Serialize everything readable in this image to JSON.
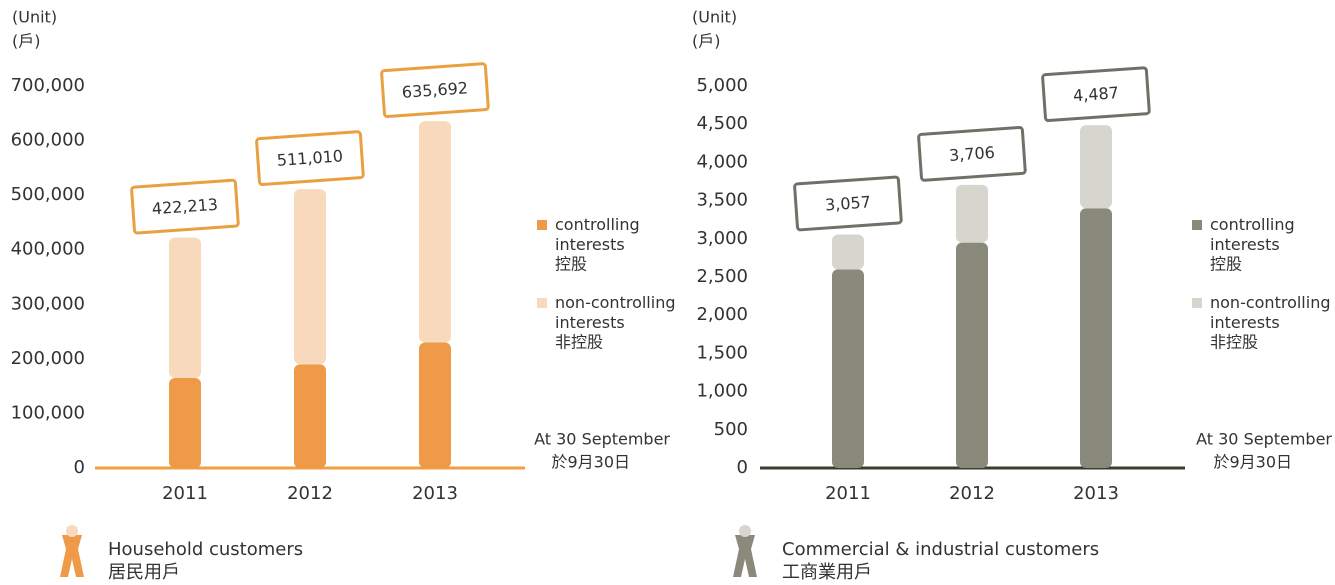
{
  "chart_data": [
    {
      "type": "bar",
      "stacked": true,
      "unit_label": "(Unit)",
      "unit_label_zh": "(戶)",
      "categories": [
        "2011",
        "2012",
        "2013"
      ],
      "series": [
        {
          "name": "controlling interests",
          "name_zh": "控股",
          "color": "#ef9a48",
          "values": [
            165000,
            190000,
            230000
          ]
        },
        {
          "name": "non-controlling interests",
          "name_zh": "非控股",
          "color": "#f8d9bc",
          "values": [
            257213,
            321010,
            405692
          ]
        }
      ],
      "totals": [
        422213,
        511010,
        635692
      ],
      "total_labels": [
        "422,213",
        "511,010",
        "635,692"
      ],
      "ylim": [
        0,
        700000
      ],
      "yticks": [
        0,
        {
          "value": 100000,
          "label": "100,000"
        },
        {
          "value": 200000,
          "label": "200,000"
        },
        {
          "value": 300000,
          "label": "300,000"
        },
        {
          "value": 400000,
          "label": "400,000"
        },
        {
          "value": 500000,
          "label": "500,000"
        },
        {
          "value": 600000,
          "label": "600,000"
        },
        {
          "value": 700000,
          "label": "700,000"
        }
      ],
      "axis_color": "#f0a040",
      "box_color": "#e9a040",
      "note": "At 30 September",
      "note_zh": "於9月30日",
      "caption": "Household customers",
      "caption_zh": "居民用戶"
    },
    {
      "type": "bar",
      "stacked": true,
      "unit_label": "(Unit)",
      "unit_label_zh": "(戶)",
      "categories": [
        "2011",
        "2012",
        "2013"
      ],
      "series": [
        {
          "name": "controlling interests",
          "name_zh": "控股",
          "color": "#8a8a7c",
          "values": [
            2600,
            2950,
            3400
          ]
        },
        {
          "name": "non-controlling interests",
          "name_zh": "非控股",
          "color": "#d6d6ce",
          "values": [
            457,
            756,
            1087
          ]
        }
      ],
      "totals": [
        3057,
        3706,
        4487
      ],
      "total_labels": [
        "3,057",
        "3,706",
        "4,487"
      ],
      "ylim": [
        0,
        5000
      ],
      "yticks": [
        0,
        500,
        {
          "value": 1000,
          "label": "1,000"
        },
        {
          "value": 1500,
          "label": "1,500"
        },
        {
          "value": 2000,
          "label": "2,000"
        },
        {
          "value": 2500,
          "label": "2,500"
        },
        {
          "value": 3000,
          "label": "3,000"
        },
        {
          "value": 3500,
          "label": "3,500"
        },
        {
          "value": 4000,
          "label": "4,000"
        },
        {
          "value": 4500,
          "label": "4,500"
        },
        {
          "value": 5000,
          "label": "5,000"
        }
      ],
      "axis_color": "#3c3c2c",
      "box_color": "#707068",
      "note": "At 30 September",
      "note_zh": "於9月30日",
      "caption": "Commercial & industrial customers",
      "caption_zh": "工商業用戶"
    }
  ]
}
